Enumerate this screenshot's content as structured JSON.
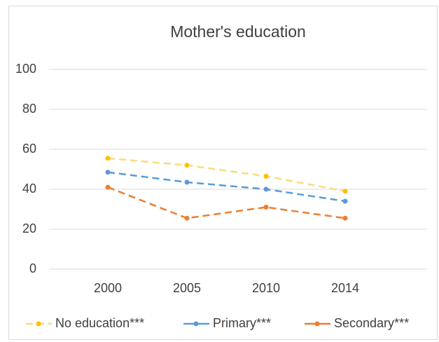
{
  "chart_data": {
    "type": "line",
    "title": "Mother's education",
    "categories": [
      "2000",
      "2005",
      "2010",
      "2014"
    ],
    "series": [
      {
        "name": "No education***",
        "color": "#ffc000",
        "line_color": "#fadb7e",
        "dashed": true,
        "values": [
          55.5,
          52,
          46.5,
          39
        ]
      },
      {
        "name": "Primary***",
        "color": "#5b9bd5",
        "line_color": "#5b9bd5",
        "dashed": true,
        "values": [
          48.5,
          43.5,
          40,
          34
        ]
      },
      {
        "name": "Secondary***",
        "color": "#ed7d31",
        "line_color": "#ed7d31",
        "dashed": true,
        "values": [
          41,
          25.5,
          31,
          25.5
        ]
      }
    ],
    "ylim": [
      0,
      100
    ],
    "yticks": [
      0,
      20,
      40,
      60,
      80,
      100
    ],
    "grid": true,
    "legend": "bottom"
  }
}
